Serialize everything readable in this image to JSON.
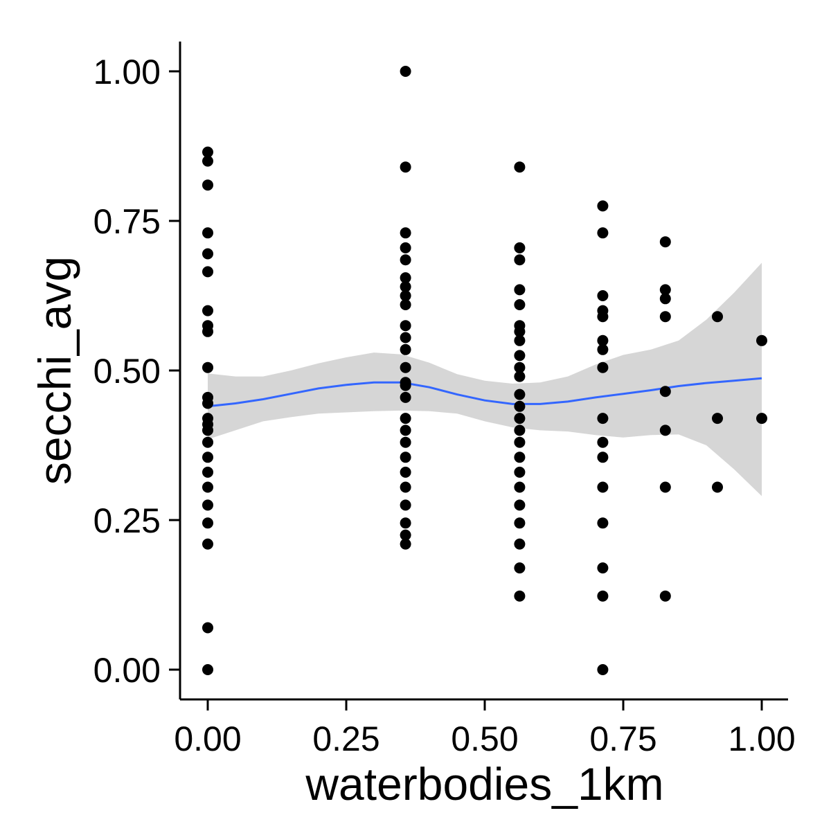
{
  "chart_data": {
    "type": "scatter",
    "title": "",
    "xlabel": "waterbodies_1km",
    "ylabel": "secchi_avg",
    "xlim": [
      -0.05,
      1.05
    ],
    "ylim": [
      -0.05,
      1.05
    ],
    "x_ticks": [
      "0.00",
      "0.25",
      "0.50",
      "0.75",
      "1.00"
    ],
    "y_ticks": [
      "0.00",
      "0.25",
      "0.50",
      "0.75",
      "1.00"
    ],
    "grid": false,
    "legend": "none",
    "colors": {
      "points": "#000000",
      "smooth_line": "#3366FF",
      "confidence_band": "#d4d4d4",
      "axis": "#000000"
    },
    "points": [
      {
        "x": 0.0,
        "y": 0.865
      },
      {
        "x": 0.0,
        "y": 0.85
      },
      {
        "x": 0.0,
        "y": 0.81
      },
      {
        "x": 0.0,
        "y": 0.73
      },
      {
        "x": 0.0,
        "y": 0.695
      },
      {
        "x": 0.0,
        "y": 0.665
      },
      {
        "x": 0.0,
        "y": 0.6
      },
      {
        "x": 0.0,
        "y": 0.575
      },
      {
        "x": 0.0,
        "y": 0.565
      },
      {
        "x": 0.0,
        "y": 0.505
      },
      {
        "x": 0.0,
        "y": 0.455
      },
      {
        "x": 0.0,
        "y": 0.445
      },
      {
        "x": 0.0,
        "y": 0.42
      },
      {
        "x": 0.0,
        "y": 0.41
      },
      {
        "x": 0.0,
        "y": 0.4
      },
      {
        "x": 0.0,
        "y": 0.38
      },
      {
        "x": 0.0,
        "y": 0.355
      },
      {
        "x": 0.0,
        "y": 0.33
      },
      {
        "x": 0.0,
        "y": 0.305
      },
      {
        "x": 0.0,
        "y": 0.275
      },
      {
        "x": 0.0,
        "y": 0.245
      },
      {
        "x": 0.0,
        "y": 0.21
      },
      {
        "x": 0.0,
        "y": 0.07
      },
      {
        "x": 0.0,
        "y": 0.0
      },
      {
        "x": 0.357,
        "y": 1.0
      },
      {
        "x": 0.357,
        "y": 0.84
      },
      {
        "x": 0.357,
        "y": 0.73
      },
      {
        "x": 0.357,
        "y": 0.705
      },
      {
        "x": 0.357,
        "y": 0.685
      },
      {
        "x": 0.357,
        "y": 0.655
      },
      {
        "x": 0.357,
        "y": 0.64
      },
      {
        "x": 0.357,
        "y": 0.625
      },
      {
        "x": 0.357,
        "y": 0.61
      },
      {
        "x": 0.357,
        "y": 0.575
      },
      {
        "x": 0.357,
        "y": 0.555
      },
      {
        "x": 0.357,
        "y": 0.535
      },
      {
        "x": 0.357,
        "y": 0.505
      },
      {
        "x": 0.357,
        "y": 0.48
      },
      {
        "x": 0.357,
        "y": 0.475
      },
      {
        "x": 0.357,
        "y": 0.455
      },
      {
        "x": 0.357,
        "y": 0.42
      },
      {
        "x": 0.357,
        "y": 0.4
      },
      {
        "x": 0.357,
        "y": 0.38
      },
      {
        "x": 0.357,
        "y": 0.355
      },
      {
        "x": 0.357,
        "y": 0.33
      },
      {
        "x": 0.357,
        "y": 0.305
      },
      {
        "x": 0.357,
        "y": 0.275
      },
      {
        "x": 0.357,
        "y": 0.245
      },
      {
        "x": 0.357,
        "y": 0.225
      },
      {
        "x": 0.357,
        "y": 0.21
      },
      {
        "x": 0.563,
        "y": 0.84
      },
      {
        "x": 0.563,
        "y": 0.705
      },
      {
        "x": 0.563,
        "y": 0.685
      },
      {
        "x": 0.563,
        "y": 0.635
      },
      {
        "x": 0.563,
        "y": 0.61
      },
      {
        "x": 0.563,
        "y": 0.575
      },
      {
        "x": 0.563,
        "y": 0.565
      },
      {
        "x": 0.563,
        "y": 0.55
      },
      {
        "x": 0.563,
        "y": 0.525
      },
      {
        "x": 0.563,
        "y": 0.505
      },
      {
        "x": 0.563,
        "y": 0.49
      },
      {
        "x": 0.563,
        "y": 0.46
      },
      {
        "x": 0.563,
        "y": 0.44
      },
      {
        "x": 0.563,
        "y": 0.42
      },
      {
        "x": 0.563,
        "y": 0.4
      },
      {
        "x": 0.563,
        "y": 0.38
      },
      {
        "x": 0.563,
        "y": 0.355
      },
      {
        "x": 0.563,
        "y": 0.33
      },
      {
        "x": 0.563,
        "y": 0.305
      },
      {
        "x": 0.563,
        "y": 0.275
      },
      {
        "x": 0.563,
        "y": 0.245
      },
      {
        "x": 0.563,
        "y": 0.21
      },
      {
        "x": 0.563,
        "y": 0.17
      },
      {
        "x": 0.563,
        "y": 0.123
      },
      {
        "x": 0.713,
        "y": 0.775
      },
      {
        "x": 0.713,
        "y": 0.73
      },
      {
        "x": 0.713,
        "y": 0.625
      },
      {
        "x": 0.713,
        "y": 0.6
      },
      {
        "x": 0.713,
        "y": 0.59
      },
      {
        "x": 0.713,
        "y": 0.55
      },
      {
        "x": 0.713,
        "y": 0.535
      },
      {
        "x": 0.713,
        "y": 0.505
      },
      {
        "x": 0.713,
        "y": 0.42
      },
      {
        "x": 0.713,
        "y": 0.38
      },
      {
        "x": 0.713,
        "y": 0.355
      },
      {
        "x": 0.713,
        "y": 0.305
      },
      {
        "x": 0.713,
        "y": 0.245
      },
      {
        "x": 0.713,
        "y": 0.17
      },
      {
        "x": 0.713,
        "y": 0.123
      },
      {
        "x": 0.713,
        "y": 0.0
      },
      {
        "x": 0.826,
        "y": 0.715
      },
      {
        "x": 0.826,
        "y": 0.635
      },
      {
        "x": 0.826,
        "y": 0.62
      },
      {
        "x": 0.826,
        "y": 0.59
      },
      {
        "x": 0.826,
        "y": 0.465
      },
      {
        "x": 0.826,
        "y": 0.4
      },
      {
        "x": 0.826,
        "y": 0.305
      },
      {
        "x": 0.826,
        "y": 0.123
      },
      {
        "x": 0.92,
        "y": 0.59
      },
      {
        "x": 0.92,
        "y": 0.42
      },
      {
        "x": 0.92,
        "y": 0.305
      },
      {
        "x": 1.0,
        "y": 0.55
      },
      {
        "x": 1.0,
        "y": 0.42
      }
    ],
    "smooth_line": [
      {
        "x": 0.0,
        "y": 0.44,
        "lower": 0.385,
        "upper": 0.495
      },
      {
        "x": 0.05,
        "y": 0.445,
        "lower": 0.4,
        "upper": 0.49
      },
      {
        "x": 0.1,
        "y": 0.452,
        "lower": 0.415,
        "upper": 0.49
      },
      {
        "x": 0.15,
        "y": 0.461,
        "lower": 0.422,
        "upper": 0.5
      },
      {
        "x": 0.2,
        "y": 0.47,
        "lower": 0.428,
        "upper": 0.512
      },
      {
        "x": 0.25,
        "y": 0.476,
        "lower": 0.43,
        "upper": 0.522
      },
      {
        "x": 0.3,
        "y": 0.48,
        "lower": 0.432,
        "upper": 0.53
      },
      {
        "x": 0.35,
        "y": 0.48,
        "lower": 0.433,
        "upper": 0.527
      },
      {
        "x": 0.4,
        "y": 0.472,
        "lower": 0.432,
        "upper": 0.513
      },
      {
        "x": 0.45,
        "y": 0.46,
        "lower": 0.428,
        "upper": 0.494
      },
      {
        "x": 0.5,
        "y": 0.45,
        "lower": 0.415,
        "upper": 0.483
      },
      {
        "x": 0.55,
        "y": 0.444,
        "lower": 0.405,
        "upper": 0.478
      },
      {
        "x": 0.6,
        "y": 0.444,
        "lower": 0.4,
        "upper": 0.48
      },
      {
        "x": 0.65,
        "y": 0.448,
        "lower": 0.398,
        "upper": 0.49
      },
      {
        "x": 0.7,
        "y": 0.455,
        "lower": 0.392,
        "upper": 0.51
      },
      {
        "x": 0.75,
        "y": 0.461,
        "lower": 0.388,
        "upper": 0.526
      },
      {
        "x": 0.8,
        "y": 0.467,
        "lower": 0.392,
        "upper": 0.535
      },
      {
        "x": 0.85,
        "y": 0.474,
        "lower": 0.393,
        "upper": 0.55
      },
      {
        "x": 0.9,
        "y": 0.479,
        "lower": 0.375,
        "upper": 0.585
      },
      {
        "x": 0.95,
        "y": 0.483,
        "lower": 0.335,
        "upper": 0.63
      },
      {
        "x": 1.0,
        "y": 0.487,
        "lower": 0.29,
        "upper": 0.68
      }
    ]
  }
}
